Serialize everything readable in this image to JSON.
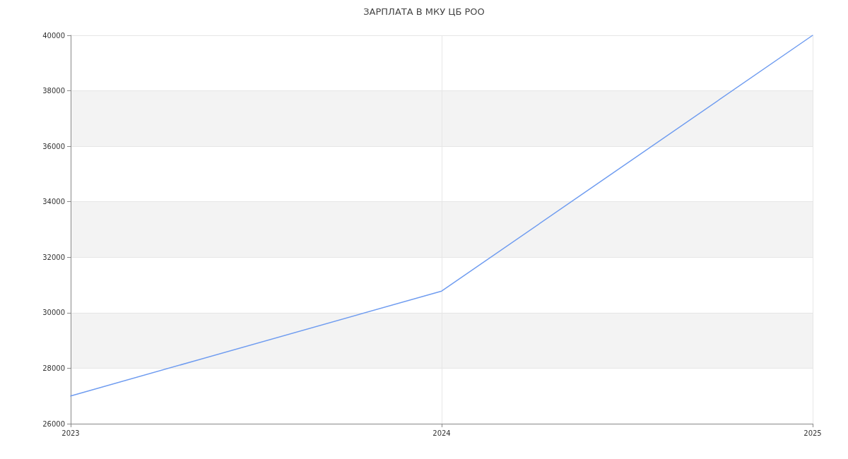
{
  "chart_data": {
    "type": "line",
    "title": "ЗАРПЛАТА В МКУ ЦБ РОО",
    "x": [
      2023,
      2024,
      2025
    ],
    "series": [
      {
        "color": "#6f9cf0",
        "values": [
          27000,
          30780,
          40000
        ]
      }
    ],
    "xlim": [
      2023,
      2025
    ],
    "xticks": [
      2023,
      2024,
      2025
    ],
    "ylim": [
      26000,
      40000
    ],
    "yticks": [
      26000,
      28000,
      30000,
      32000,
      34000,
      36000,
      38000,
      40000
    ],
    "grid": true,
    "marker": "none",
    "line_style": "solid"
  }
}
